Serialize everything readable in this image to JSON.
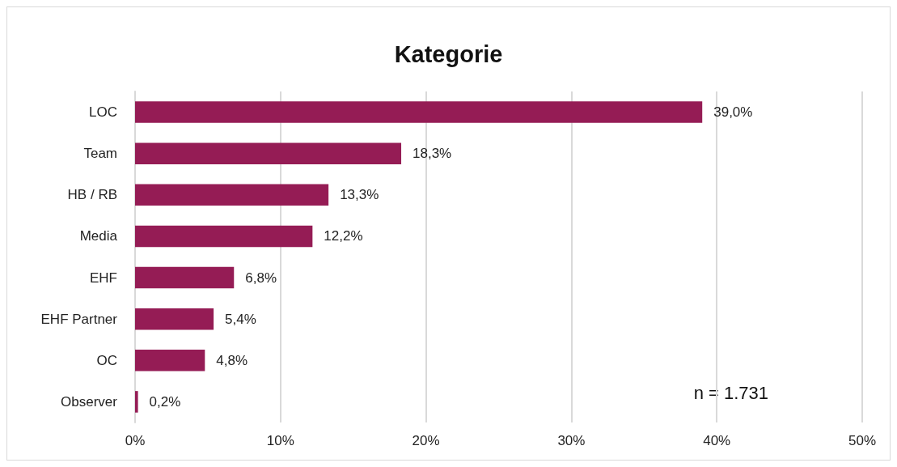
{
  "chart_data": {
    "type": "bar",
    "orientation": "horizontal",
    "title": "Kategorie",
    "categories": [
      "LOC",
      "Team",
      "HB / RB",
      "Media",
      "EHF",
      "EHF Partner",
      "OC",
      "Observer"
    ],
    "values": [
      39.0,
      18.3,
      13.3,
      12.2,
      6.8,
      5.4,
      4.8,
      0.2
    ],
    "value_labels": [
      "39,0%",
      "18,3%",
      "13,3%",
      "12,2%",
      "6,8%",
      "5,4%",
      "4,8%",
      "0,2%"
    ],
    "color": "#951c55",
    "xlim": [
      0,
      50
    ],
    "xticks": [
      {
        "value": 0,
        "label": "0%"
      },
      {
        "value": 10,
        "label": "10%"
      },
      {
        "value": 20,
        "label": "20%"
      },
      {
        "value": 30,
        "label": "30%"
      },
      {
        "value": 40,
        "label": "40%"
      },
      {
        "value": 50,
        "label": "50%"
      }
    ],
    "grid": "x",
    "annotations": [
      "n = 1.731"
    ]
  }
}
